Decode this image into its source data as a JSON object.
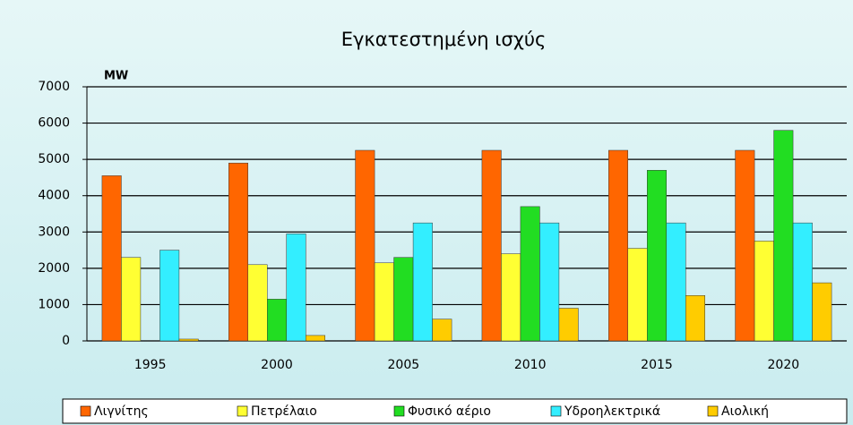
{
  "chart_data": {
    "type": "bar",
    "title": "Εγκατεστημένη ισχύς",
    "y_label": "MW",
    "categories": [
      "1995",
      "2000",
      "2005",
      "2010",
      "2015",
      "2020"
    ],
    "series": [
      {
        "name": "Λιγνίτης",
        "color": "#ff6600",
        "values": [
          4550,
          4900,
          5250,
          5250,
          5250,
          5250
        ]
      },
      {
        "name": "Πετρέλαιο",
        "color": "#ffff33",
        "values": [
          2300,
          2100,
          2150,
          2400,
          2550,
          2750
        ]
      },
      {
        "name": "Φυσικό αέριο",
        "color": "#22dd22",
        "values": [
          0,
          1150,
          2300,
          3700,
          4700,
          5800
        ]
      },
      {
        "name": "Υδροηλεκτρικά",
        "color": "#33eeff",
        "values": [
          2500,
          2950,
          3250,
          3250,
          3250,
          3250
        ]
      },
      {
        "name": "Αιολική",
        "color": "#ffcc00",
        "values": [
          50,
          150,
          600,
          900,
          1250,
          1600
        ]
      }
    ],
    "ylim": [
      0,
      7000
    ],
    "yticks": [
      0,
      1000,
      2000,
      3000,
      4000,
      5000,
      6000,
      7000
    ],
    "grid": true
  }
}
